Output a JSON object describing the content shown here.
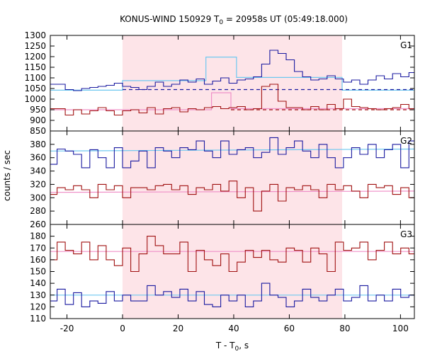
{
  "chart_data": {
    "type": "line",
    "title": "KONUS-WIND 150929 T",
    "title_sub": "0",
    "title_tail": " = 20958s UT (05:49:18.000)",
    "xlabel": "T - T",
    "xlabel_sub": "0",
    "xlabel_tail": ", s",
    "ylabel": "counts / sec",
    "xlim": [
      -26,
      105
    ],
    "xticks": [
      -20,
      0,
      20,
      40,
      60,
      80,
      100
    ],
    "highlight_interval": [
      0,
      79
    ],
    "colors": {
      "soft_band": "#1a1aa0",
      "hard_band": "#a01010",
      "soft_fit": "#6ec8f0",
      "hard_fit": "#f090c8",
      "highlight": "#fde4e8"
    },
    "panels": [
      {
        "label": "G1",
        "ylim": [
          850,
          1300
        ],
        "yticks": [
          850,
          900,
          950,
          1000,
          1050,
          1100,
          1150,
          1200,
          1250,
          1300
        ],
        "series": [
          {
            "role": "soft",
            "step": 2.944,
            "x_start": -26.5,
            "values": [
              1070,
              1070,
              1045,
              1040,
              1050,
              1055,
              1060,
              1065,
              1075,
              1060,
              1055,
              1045,
              1060,
              1080,
              1060,
              1070,
              1090,
              1080,
              1095,
              1070,
              1085,
              1100,
              1075,
              1090,
              1095,
              1105,
              1165,
              1230,
              1215,
              1185,
              1130,
              1105,
              1090,
              1095,
              1110,
              1095,
              1080,
              1090,
              1070,
              1090,
              1110,
              1095,
              1120,
              1105,
              1125,
              1080,
              1120,
              1060,
              1065,
              1055,
              1060,
              1050,
              1045,
              1050,
              1045
            ]
          },
          {
            "role": "hard",
            "step": 2.944,
            "x_start": -26.5,
            "values": [
              955,
              955,
              925,
              950,
              930,
              945,
              960,
              945,
              925,
              945,
              950,
              935,
              960,
              930,
              955,
              960,
              940,
              955,
              950,
              960,
              965,
              955,
              960,
              965,
              950,
              955,
              1060,
              1070,
              990,
              960,
              960,
              950,
              965,
              950,
              975,
              955,
              1000,
              965,
              960,
              955,
              950,
              955,
              960,
              975,
              955,
              950,
              950,
              945,
              940,
              945,
              935,
              930,
              945,
              940,
              930
            ]
          }
        ],
        "fits": [
          {
            "role": "soft",
            "style": "solid",
            "points": [
              [
                -26,
                1042
              ],
              [
                0,
                1042
              ],
              [
                0,
                1087
              ],
              [
                30,
                1087
              ],
              [
                30,
                1198
              ],
              [
                41,
                1198
              ],
              [
                41,
                1102
              ],
              [
                79,
                1102
              ],
              [
                79,
                1042
              ],
              [
                105,
                1042
              ]
            ]
          },
          {
            "role": "soft",
            "style": "dashed",
            "points": [
              [
                0,
                1045
              ],
              [
                105,
                1045
              ]
            ]
          },
          {
            "role": "hard",
            "style": "solid",
            "points": [
              [
                -26,
                950
              ],
              [
                32,
                950
              ],
              [
                32,
                1030
              ],
              [
                39,
                1030
              ],
              [
                39,
                955
              ],
              [
                105,
                955
              ]
            ]
          },
          {
            "role": "hard",
            "style": "dashed",
            "points": [
              [
                39,
                950
              ],
              [
                105,
                950
              ]
            ]
          }
        ]
      },
      {
        "label": "G2",
        "ylim": [
          260,
          400
        ],
        "yticks": [
          260,
          280,
          300,
          320,
          340,
          360,
          380,
          400
        ],
        "series": [
          {
            "role": "soft",
            "step": 2.944,
            "x_start": -26.5,
            "values": [
              350,
              373,
              370,
              365,
              345,
              372,
              360,
              345,
              375,
              345,
              355,
              370,
              345,
              375,
              370,
              360,
              375,
              372,
              385,
              370,
              360,
              385,
              365,
              372,
              375,
              360,
              368,
              390,
              365,
              375,
              385,
              370,
              360,
              380,
              360,
              345,
              360,
              375,
              365,
              380,
              360,
              372,
              380,
              345,
              385,
              372,
              385,
              360,
              375,
              372,
              385,
              345,
              380,
              360,
              362
            ]
          },
          {
            "role": "hard",
            "step": 2.944,
            "x_start": -26.5,
            "values": [
              305,
              315,
              312,
              318,
              312,
              300,
              320,
              312,
              318,
              300,
              315,
              315,
              312,
              318,
              320,
              312,
              318,
              305,
              315,
              312,
              320,
              310,
              325,
              300,
              315,
              280,
              310,
              320,
              295,
              315,
              312,
              318,
              312,
              300,
              320,
              312,
              318,
              310,
              300,
              320,
              315,
              318,
              305,
              315,
              300,
              295,
              312,
              300,
              305,
              310,
              312,
              300,
              312,
              315,
              320
            ]
          }
        ],
        "fits": [
          {
            "role": "soft",
            "style": "solid",
            "points": [
              [
                -26,
                370
              ],
              [
                105,
                373
              ]
            ]
          },
          {
            "role": "hard",
            "style": "solid",
            "points": [
              [
                -26,
                308
              ],
              [
                105,
                310
              ]
            ]
          }
        ]
      },
      {
        "label": "G3",
        "ylim": [
          110,
          190
        ],
        "yticks": [
          110,
          120,
          130,
          140,
          150,
          160,
          170,
          180,
          190
        ],
        "series": [
          {
            "role": "soft",
            "step": 2.944,
            "x_start": -26.5,
            "values": [
              125,
              135,
              122,
              132,
              120,
              125,
              123,
              133,
              125,
              130,
              125,
              125,
              138,
              130,
              133,
              128,
              135,
              125,
              133,
              122,
              120,
              130,
              125,
              130,
              120,
              125,
              140,
              130,
              128,
              120,
              125,
              135,
              128,
              125,
              130,
              135,
              125,
              128,
              138,
              125,
              130,
              125,
              135,
              128,
              130,
              120,
              138,
              145,
              140,
              125,
              128,
              135,
              125,
              130,
              135
            ]
          },
          {
            "role": "hard",
            "step": 2.944,
            "x_start": -26.5,
            "values": [
              160,
              175,
              168,
              165,
              175,
              160,
              172,
              160,
              155,
              170,
              150,
              165,
              180,
              172,
              165,
              165,
              175,
              150,
              168,
              160,
              155,
              165,
              150,
              158,
              168,
              162,
              168,
              160,
              158,
              170,
              168,
              158,
              170,
              165,
              150,
              175,
              168,
              170,
              175,
              160,
              168,
              175,
              165,
              170,
              165,
              155,
              168,
              172,
              168,
              170,
              175,
              165,
              178,
              175,
              155
            ]
          }
        ],
        "fits": [
          {
            "role": "soft",
            "style": "solid",
            "points": [
              [
                -26,
                130
              ],
              [
                105,
                130
              ]
            ]
          },
          {
            "role": "hard",
            "style": "solid",
            "points": [
              [
                -26,
                167
              ],
              [
                105,
                167
              ]
            ]
          }
        ]
      }
    ]
  }
}
